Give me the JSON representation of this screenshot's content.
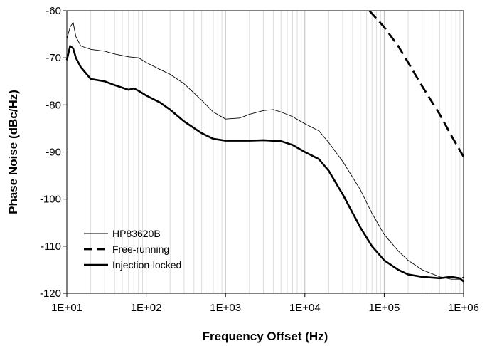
{
  "chart_data": {
    "type": "line",
    "xlabel": "Frequency Offset (Hz)",
    "ylabel": "Phase Noise (dBc/Hz)",
    "x_scale": "log",
    "xlim": [
      10,
      1000000
    ],
    "ylim": [
      -120,
      -60
    ],
    "x_ticks": [
      "1E+01",
      "1E+02",
      "1E+03",
      "1E+04",
      "1E+05",
      "1E+06"
    ],
    "y_ticks": [
      "-60",
      "-70",
      "-80",
      "-90",
      "-100",
      "-110",
      "-120"
    ],
    "grid": "vertical log minor gridlines",
    "legend_position": "bottom-left",
    "series": [
      {
        "name": "HP83620B",
        "style": "thin-solid",
        "color": "#000000",
        "points": [
          [
            10,
            -66
          ],
          [
            11,
            -63.5
          ],
          [
            12,
            -62.5
          ],
          [
            13,
            -65.5
          ],
          [
            15,
            -67.5
          ],
          [
            20,
            -68.2
          ],
          [
            30,
            -68.6
          ],
          [
            40,
            -69.2
          ],
          [
            60,
            -69.8
          ],
          [
            80,
            -70
          ],
          [
            100,
            -71
          ],
          [
            150,
            -72.5
          ],
          [
            200,
            -73.5
          ],
          [
            300,
            -75.5
          ],
          [
            500,
            -79
          ],
          [
            700,
            -81.5
          ],
          [
            1000,
            -83
          ],
          [
            1500,
            -82.8
          ],
          [
            2000,
            -82
          ],
          [
            3000,
            -81.2
          ],
          [
            4000,
            -81
          ],
          [
            5000,
            -81.5
          ],
          [
            7000,
            -82.5
          ],
          [
            10000,
            -84
          ],
          [
            15000,
            -85.5
          ],
          [
            20000,
            -88
          ],
          [
            30000,
            -92
          ],
          [
            50000,
            -98
          ],
          [
            70000,
            -103
          ],
          [
            100000,
            -107.5
          ],
          [
            150000,
            -111
          ],
          [
            200000,
            -113
          ],
          [
            300000,
            -115
          ],
          [
            500000,
            -116.5
          ],
          [
            700000,
            -117
          ],
          [
            900000,
            -117
          ],
          [
            1000000,
            -116.5
          ]
        ]
      },
      {
        "name": "Free-running",
        "style": "thick-dashed",
        "color": "#000000",
        "points": [
          [
            65000,
            -60
          ],
          [
            100000,
            -63.5
          ],
          [
            150000,
            -67.5
          ],
          [
            200000,
            -71
          ],
          [
            300000,
            -76
          ],
          [
            500000,
            -82
          ],
          [
            700000,
            -86.5
          ],
          [
            1000000,
            -91
          ]
        ]
      },
      {
        "name": "Injection-locked",
        "style": "thick-solid",
        "color": "#000000",
        "points": [
          [
            10,
            -70.5
          ],
          [
            11,
            -67.5
          ],
          [
            12,
            -68
          ],
          [
            13,
            -70
          ],
          [
            15,
            -72
          ],
          [
            20,
            -74.5
          ],
          [
            30,
            -75
          ],
          [
            40,
            -75.8
          ],
          [
            60,
            -76.8
          ],
          [
            70,
            -76.5
          ],
          [
            80,
            -77
          ],
          [
            100,
            -78
          ],
          [
            150,
            -79.5
          ],
          [
            200,
            -81
          ],
          [
            300,
            -83.5
          ],
          [
            500,
            -86
          ],
          [
            700,
            -87.2
          ],
          [
            1000,
            -87.6
          ],
          [
            2000,
            -87.6
          ],
          [
            3000,
            -87.5
          ],
          [
            5000,
            -87.7
          ],
          [
            7000,
            -88.5
          ],
          [
            10000,
            -90
          ],
          [
            15000,
            -91.5
          ],
          [
            20000,
            -94
          ],
          [
            30000,
            -99
          ],
          [
            50000,
            -106
          ],
          [
            70000,
            -110
          ],
          [
            100000,
            -113
          ],
          [
            150000,
            -115
          ],
          [
            200000,
            -116
          ],
          [
            300000,
            -116.5
          ],
          [
            500000,
            -116.8
          ],
          [
            700000,
            -116.5
          ],
          [
            900000,
            -116.8
          ],
          [
            1000000,
            -117.5
          ]
        ]
      }
    ]
  }
}
